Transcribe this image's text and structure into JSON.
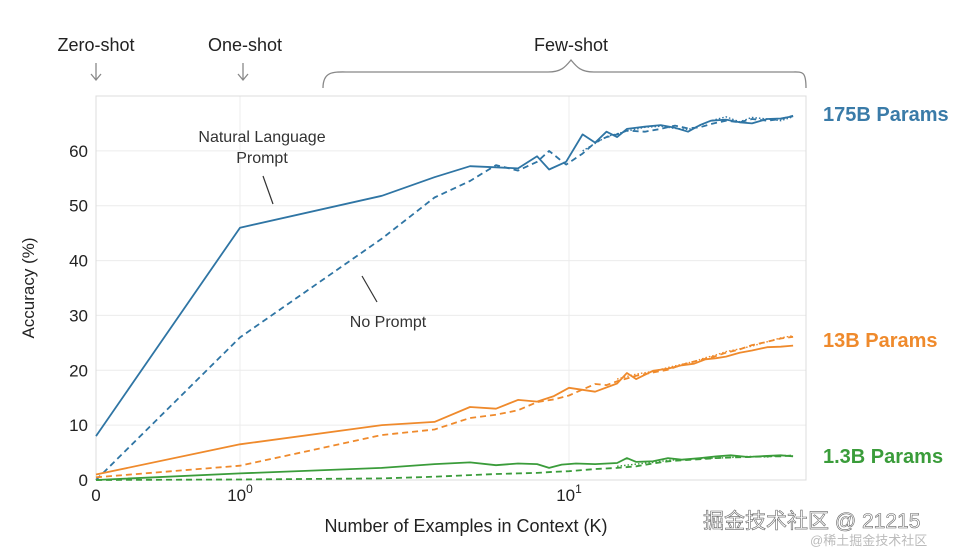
{
  "chart_data": {
    "type": "line",
    "xlabel": "Number of Examples in Context  (K)",
    "ylabel": "Accuracy (%)",
    "ylim": [
      0,
      70
    ],
    "x_scale": "symlog",
    "x_ticks": [
      {
        "value": 0,
        "label": "0"
      },
      {
        "value": 1,
        "label": "10",
        "exp": "0"
      },
      {
        "value": 10,
        "label": "10",
        "exp": "1"
      }
    ],
    "y_ticks": [
      0,
      10,
      20,
      30,
      40,
      50,
      60
    ],
    "regimes": {
      "zero_shot": "Zero-shot",
      "one_shot": "One-shot",
      "few_shot": "Few-shot"
    },
    "annotations": {
      "natural_language_line1": "Natural Language",
      "natural_language_line2": "Prompt",
      "no_prompt": "No Prompt"
    },
    "model_labels": [
      {
        "text": "175B Params",
        "color": "#3a7ba8"
      },
      {
        "text": "13B Params",
        "color": "#ef8a2c"
      },
      {
        "text": "1.3B Params",
        "color": "#3a9c3a"
      }
    ],
    "watermark": {
      "main": "掘金技术社区 @ 21215",
      "sub": "@稀土掘金技术社区"
    },
    "series": [
      {
        "model": "175B",
        "prompt": "natural",
        "style": "solid",
        "color": "#2f75a4",
        "x": [
          0,
          1,
          2.7,
          3.9,
          5,
          6,
          7,
          8,
          8.7,
          9.8,
          11,
          12,
          13,
          14,
          15,
          17,
          19,
          21,
          23,
          25,
          27,
          30,
          33,
          36,
          40,
          44,
          48
        ],
        "y": [
          8,
          46,
          51.8,
          55.2,
          57.2,
          57,
          56.8,
          59,
          56.6,
          58,
          63,
          61.5,
          63.5,
          62.5,
          64,
          64.4,
          64.7,
          64.2,
          63.5,
          64.7,
          65.5,
          65.7,
          65.2,
          65,
          65.8,
          65.9,
          66.3
        ]
      },
      {
        "model": "175B",
        "prompt": "none",
        "style": "dashed",
        "color": "#2f75a4",
        "x": [
          0,
          1,
          2.7,
          3.9,
          5,
          6,
          7,
          8,
          8.7,
          9.8,
          11,
          12,
          13,
          14,
          15,
          17,
          19,
          21,
          23,
          25,
          27,
          30,
          33,
          36,
          40,
          44,
          48
        ],
        "y": [
          0,
          26,
          44,
          51.5,
          54.5,
          57.4,
          56.4,
          58,
          60,
          57.5,
          59.5,
          61.5,
          62.5,
          63,
          63.7,
          63.5,
          64,
          64.6,
          64.1,
          64.3,
          64.9,
          65.5,
          65.2,
          65.8,
          65.5,
          65.8,
          66.4
        ]
      },
      {
        "model": "175B",
        "prompt": "none",
        "style": "dotted",
        "color": "#2f75a4",
        "x": [
          11,
          13,
          15,
          17,
          19,
          21,
          23,
          25,
          27,
          30,
          33,
          36,
          40,
          44,
          48
        ],
        "y": [
          60,
          62.6,
          63.6,
          64.3,
          64.5,
          64.1,
          63.9,
          64.6,
          65.5,
          66.2,
          65.3,
          66.1,
          65.8,
          65.5,
          66.2
        ]
      },
      {
        "model": "13B",
        "prompt": "natural",
        "style": "solid",
        "color": "#ef8a2c",
        "x": [
          0,
          1,
          2.7,
          3.9,
          5,
          6,
          7,
          8,
          9,
          10,
          12,
          14,
          15,
          16,
          18,
          20,
          22,
          24,
          26,
          28,
          30,
          33,
          36,
          40,
          44,
          48
        ],
        "y": [
          1,
          6.5,
          10,
          10.6,
          13.3,
          13,
          14.6,
          14.3,
          15.3,
          16.8,
          16.1,
          17.6,
          19.5,
          18.4,
          19.9,
          20.3,
          20.9,
          21.2,
          22,
          22.2,
          22.5,
          23.2,
          23.6,
          24.2,
          24.3,
          24.5
        ]
      },
      {
        "model": "13B",
        "prompt": "none",
        "style": "dashed",
        "color": "#ef8a2c",
        "x": [
          0,
          1,
          2.7,
          3.9,
          5,
          6,
          7,
          8,
          9,
          10,
          11,
          12,
          13,
          14,
          16,
          18,
          20,
          22,
          24,
          26,
          28,
          30,
          33,
          36,
          40,
          44,
          48
        ],
        "y": [
          0.5,
          2.6,
          8.2,
          9.2,
          11.3,
          11.9,
          12.7,
          14.2,
          14.7,
          15.4,
          16.5,
          17.5,
          17.3,
          18,
          19,
          19.6,
          20.1,
          21,
          21.6,
          22.1,
          22.6,
          23.2,
          23.8,
          24.6,
          25.2,
          25.8,
          26.1
        ]
      },
      {
        "model": "13B",
        "prompt": "none",
        "style": "dotted",
        "color": "#ef8a2c",
        "x": [
          14,
          16,
          18,
          20,
          22,
          24,
          26,
          28,
          30,
          33,
          36,
          40,
          44,
          48
        ],
        "y": [
          18.4,
          19.3,
          19.8,
          20.5,
          21.1,
          21.6,
          22.3,
          22.8,
          23.4,
          23.9,
          24.4,
          25.2,
          25.9,
          26.3
        ]
      },
      {
        "model": "1.3B",
        "prompt": "natural",
        "style": "solid",
        "color": "#3a9c3a",
        "x": [
          0,
          1,
          2.7,
          3.9,
          5,
          6,
          7,
          8,
          8.7,
          9.5,
          10.5,
          12,
          14,
          15,
          16,
          18,
          20,
          22,
          25,
          28,
          31,
          35,
          40,
          44,
          48
        ],
        "y": [
          0,
          1.2,
          2.2,
          2.9,
          3.2,
          2.7,
          3,
          2.9,
          2.2,
          2.8,
          3,
          2.9,
          3.1,
          4,
          3.3,
          3.4,
          4,
          3.7,
          4,
          4.3,
          4.5,
          4.2,
          4.4,
          4.5,
          4.3
        ]
      },
      {
        "model": "1.3B",
        "prompt": "none",
        "style": "dashed",
        "color": "#3a9c3a",
        "x": [
          0,
          1,
          2.7,
          3.9,
          5,
          6,
          7,
          8,
          9,
          10,
          11,
          12,
          14,
          16,
          18,
          20,
          22,
          25,
          28,
          31,
          35,
          40,
          44,
          48
        ],
        "y": [
          0,
          0.1,
          0.3,
          0.6,
          0.9,
          1.1,
          1.2,
          1.3,
          1.5,
          1.6,
          1.8,
          2,
          2.2,
          2.5,
          3,
          3.4,
          3.6,
          3.8,
          4,
          4.1,
          4.2,
          4.3,
          4.3,
          4.5
        ]
      },
      {
        "model": "1.3B",
        "prompt": "none",
        "style": "dotted",
        "color": "#3a9c3a",
        "x": [
          14,
          16,
          18,
          20,
          22,
          25,
          28,
          31,
          35,
          40,
          44,
          48
        ],
        "y": [
          2.5,
          2.9,
          3.2,
          3.6,
          3.7,
          3.9,
          4,
          4.1,
          4.3,
          4.2,
          4.5,
          4.4
        ]
      }
    ]
  }
}
